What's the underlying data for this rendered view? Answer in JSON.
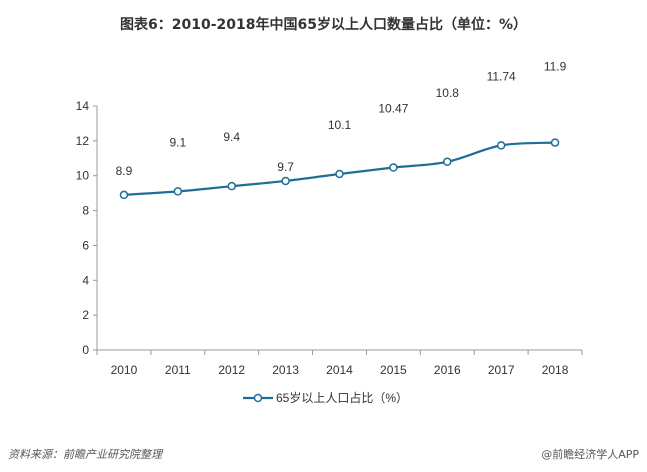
{
  "chart_data": {
    "type": "line",
    "title": "图表6：2010-2018年中国65岁以上人口数量占比（单位：%）",
    "categories": [
      "2010",
      "2011",
      "2012",
      "2013",
      "2014",
      "2015",
      "2016",
      "2017",
      "2018"
    ],
    "series": [
      {
        "name": "65岁以上人口占比（%）",
        "values": [
          8.9,
          9.1,
          9.4,
          9.7,
          10.1,
          10.47,
          10.8,
          11.74,
          11.9
        ],
        "color": "#1f6e96"
      }
    ],
    "data_labels": [
      "8.9",
      "9.1",
      "9.4",
      "9.7",
      "10.1",
      "10.47",
      "10.8",
      "11.74",
      "11.9"
    ],
    "ylim": [
      0,
      14
    ],
    "yticks": [
      "0",
      "2",
      "4",
      "6",
      "8",
      "10",
      "12",
      "14"
    ],
    "grid": false,
    "legend": "bottom",
    "xlabel": "",
    "ylabel": ""
  },
  "footer": {
    "source": "资料来源：前瞻产业研究院整理",
    "brand": "@前瞻经济学人APP"
  }
}
